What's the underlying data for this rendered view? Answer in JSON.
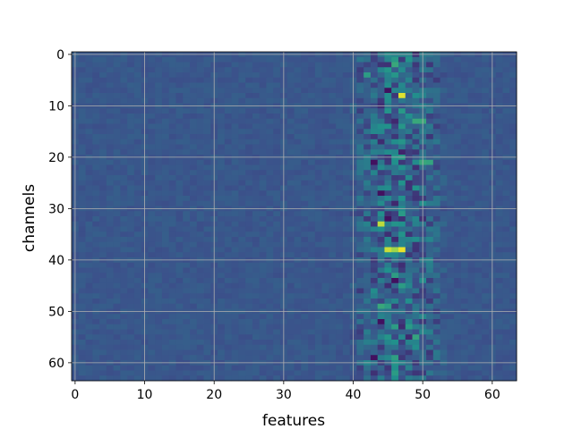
{
  "chart_data": {
    "type": "heatmap",
    "title": "",
    "xlabel": "features",
    "ylabel": "channels",
    "rows": 64,
    "cols": 64,
    "xlim": [
      -0.5,
      63.5
    ],
    "ylim": [
      63.5,
      -0.5
    ],
    "xticks": [
      0,
      10,
      20,
      30,
      40,
      50,
      60
    ],
    "yticks": [
      0,
      10,
      20,
      30,
      40,
      50,
      60
    ],
    "grid": true,
    "colormap": "viridis",
    "colormap_stops": [
      "#440154",
      "#3b528b",
      "#21918c",
      "#5ec962",
      "#fde725"
    ],
    "background_level": 0.27,
    "active_band_columns": [
      41,
      52
    ],
    "hot_cells": [
      {
        "row": 8,
        "col": 47,
        "level": 0.95
      },
      {
        "row": 33,
        "col": 44,
        "level": 0.9
      },
      {
        "row": 38,
        "col": 45,
        "level": 0.92
      },
      {
        "row": 38,
        "col": 46,
        "level": 0.85
      },
      {
        "row": 38,
        "col": 47,
        "level": 0.97
      },
      {
        "row": 13,
        "col": 49,
        "level": 0.6
      },
      {
        "row": 13,
        "col": 50,
        "level": 0.6
      },
      {
        "row": 21,
        "col": 50,
        "level": 0.6
      },
      {
        "row": 21,
        "col": 51,
        "level": 0.58
      },
      {
        "row": 49,
        "col": 44,
        "level": 0.6
      },
      {
        "row": 49,
        "col": 45,
        "level": 0.55
      },
      {
        "row": 2,
        "col": 46,
        "level": 0.6
      },
      {
        "row": 4,
        "col": 42,
        "level": 0.55
      },
      {
        "row": 55,
        "col": 49,
        "level": 0.58
      },
      {
        "row": 28,
        "col": 47,
        "level": 0.5
      },
      {
        "row": 42,
        "col": 45,
        "level": 0.5
      },
      {
        "row": 33,
        "col": 47,
        "level": 0.5
      },
      {
        "row": 46,
        "col": 43,
        "level": 0.48
      }
    ],
    "dark_cells": [
      {
        "row": 7,
        "col": 45
      },
      {
        "row": 21,
        "col": 43
      },
      {
        "row": 27,
        "col": 44
      },
      {
        "row": 32,
        "col": 45
      },
      {
        "row": 44,
        "col": 46
      },
      {
        "row": 52,
        "col": 44
      },
      {
        "row": 59,
        "col": 43
      }
    ]
  }
}
